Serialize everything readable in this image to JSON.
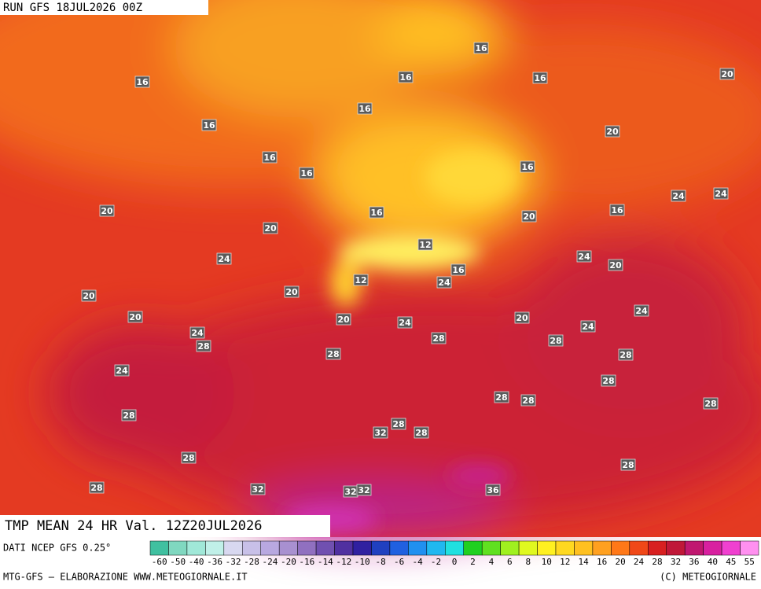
{
  "header": {
    "run": "RUN GFS 18JUL2026 00Z",
    "title": "TMP MEAN 24 HR Val. 12Z20JUL2026"
  },
  "contour_labels": [
    16,
    16,
    16,
    16,
    20,
    16,
    16,
    20,
    16,
    16,
    16,
    24,
    24,
    20,
    16,
    20,
    16,
    20,
    12,
    24,
    24,
    20,
    12,
    16,
    24,
    20,
    20,
    20,
    20,
    24,
    24,
    20,
    24,
    24,
    28,
    28,
    28,
    28,
    28,
    24,
    28,
    28,
    28,
    28,
    28,
    32,
    28,
    28,
    28,
    28,
    28,
    32,
    36,
    32,
    32
  ],
  "legend": {
    "source": "DATI NCEP GFS 0.25°",
    "ticks": [
      -60,
      -50,
      -40,
      -36,
      -32,
      -28,
      -24,
      -20,
      -16,
      -14,
      -12,
      -10,
      -8,
      -6,
      -4,
      -2,
      0,
      2,
      4,
      6,
      8,
      10,
      12,
      14,
      16,
      20,
      24,
      28,
      32,
      36,
      40,
      45,
      55
    ],
    "colors": [
      "#40c0a0",
      "#80d8c0",
      "#a0e8d8",
      "#c0f0e8",
      "#d8d8f0",
      "#c8c0e8",
      "#b8a8e0",
      "#a890d0",
      "#9070c0",
      "#7050b0",
      "#5030a0",
      "#3020a0",
      "#2040c0",
      "#2060e0",
      "#2090f0",
      "#20b8f0",
      "#20e0e0",
      "#20d020",
      "#60e020",
      "#a0f020",
      "#e0f820",
      "#fff020",
      "#ffd820",
      "#ffc020",
      "#ffa020",
      "#ff7818",
      "#f04818",
      "#d82020",
      "#c01838",
      "#c01870",
      "#d820a0",
      "#f040d0",
      "#ff90f0"
    ]
  },
  "footer": {
    "left": "MTG-GFS — ELABORAZIONE WWW.METEOGIORNALE.IT",
    "right": "(C) METEOGIORNALE"
  }
}
